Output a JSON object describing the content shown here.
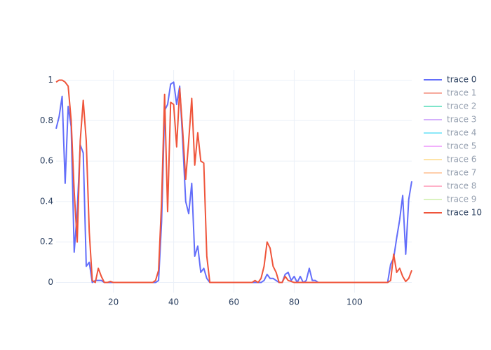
{
  "chart_data": {
    "type": "line",
    "x": [
      1,
      2,
      3,
      4,
      5,
      6,
      7,
      8,
      9,
      10,
      11,
      12,
      13,
      14,
      15,
      16,
      17,
      18,
      19,
      20,
      21,
      22,
      23,
      24,
      25,
      26,
      27,
      28,
      29,
      30,
      31,
      32,
      33,
      34,
      35,
      36,
      37,
      38,
      39,
      40,
      41,
      42,
      43,
      44,
      45,
      46,
      47,
      48,
      49,
      50,
      51,
      52,
      53,
      54,
      55,
      56,
      57,
      58,
      59,
      60,
      61,
      62,
      63,
      64,
      65,
      66,
      67,
      68,
      69,
      70,
      71,
      72,
      73,
      74,
      75,
      76,
      77,
      78,
      79,
      80,
      81,
      82,
      83,
      84,
      85,
      86,
      87,
      88,
      89,
      90,
      91,
      92,
      93,
      94,
      95,
      96,
      97,
      98,
      99,
      100,
      101,
      102,
      103,
      104,
      105,
      106,
      107,
      108,
      109,
      110,
      111,
      112,
      113,
      114,
      115,
      116,
      117,
      118,
      119
    ],
    "series": [
      {
        "name": "trace 0",
        "color": "#636efa",
        "visible": true,
        "values": [
          0.76,
          0.82,
          0.92,
          0.49,
          0.87,
          0.77,
          0.15,
          0.35,
          0.68,
          0.64,
          0.08,
          0.1,
          0,
          0.01,
          0.01,
          0.01,
          0,
          0,
          0,
          0,
          0,
          0,
          0,
          0,
          0,
          0,
          0,
          0,
          0,
          0,
          0,
          0,
          0,
          0,
          0.01,
          0.3,
          0.85,
          0.88,
          0.98,
          0.99,
          0.88,
          0.97,
          0.7,
          0.4,
          0.34,
          0.49,
          0.13,
          0.18,
          0.05,
          0.07,
          0.02,
          0,
          0,
          0,
          0,
          0,
          0,
          0,
          0,
          0,
          0,
          0,
          0,
          0,
          0,
          0,
          0,
          0,
          0,
          0.01,
          0.04,
          0.02,
          0.02,
          0.01,
          0,
          0,
          0.04,
          0.05,
          0.01,
          0.03,
          0,
          0.03,
          0,
          0.01,
          0.07,
          0.01,
          0.01,
          0,
          0,
          0,
          0,
          0,
          0,
          0,
          0,
          0,
          0,
          0,
          0,
          0,
          0,
          0,
          0,
          0,
          0,
          0,
          0,
          0,
          0,
          0,
          0,
          0.09,
          0.12,
          0.22,
          0.31,
          0.43,
          0.14,
          0.41,
          0.5
        ]
      },
      {
        "name": "trace 1",
        "color": "#ef553b",
        "visible": "legendonly"
      },
      {
        "name": "trace 2",
        "color": "#00cc96",
        "visible": "legendonly"
      },
      {
        "name": "trace 3",
        "color": "#ab63fa",
        "visible": "legendonly"
      },
      {
        "name": "trace 4",
        "color": "#19d3f3",
        "visible": "legendonly"
      },
      {
        "name": "trace 5",
        "color": "#e763fa",
        "visible": "legendonly"
      },
      {
        "name": "trace 6",
        "color": "#fecb52",
        "visible": "legendonly"
      },
      {
        "name": "trace 7",
        "color": "#ffa15a",
        "visible": "legendonly"
      },
      {
        "name": "trace 8",
        "color": "#ff6692",
        "visible": "legendonly"
      },
      {
        "name": "trace 9",
        "color": "#b6e880",
        "visible": "legendonly"
      },
      {
        "name": "trace 10",
        "color": "#ef553b",
        "visible": true,
        "values": [
          0.99,
          1,
          1,
          0.99,
          0.97,
          0.8,
          0.45,
          0.2,
          0.7,
          0.9,
          0.7,
          0.25,
          0.01,
          0,
          0.07,
          0.03,
          0,
          0,
          0.005,
          0,
          0,
          0,
          0,
          0,
          0,
          0,
          0,
          0,
          0,
          0,
          0,
          0,
          0,
          0.01,
          0.06,
          0.4,
          0.93,
          0.35,
          0.89,
          0.88,
          0.67,
          0.96,
          0.75,
          0.51,
          0.7,
          0.91,
          0.58,
          0.74,
          0.6,
          0.59,
          0.13,
          0,
          0,
          0,
          0,
          0,
          0,
          0,
          0,
          0,
          0,
          0,
          0,
          0,
          0,
          0,
          0.01,
          0,
          0.02,
          0.08,
          0.2,
          0.17,
          0.08,
          0.05,
          0,
          0,
          0.03,
          0.01,
          0.005,
          0,
          0,
          0,
          0,
          0,
          0,
          0,
          0,
          0,
          0,
          0,
          0,
          0,
          0,
          0,
          0,
          0,
          0,
          0,
          0,
          0,
          0,
          0,
          0,
          0,
          0,
          0,
          0,
          0,
          0,
          0,
          0,
          0.01,
          0.14,
          0.05,
          0.07,
          0.03,
          0.005,
          0.02,
          0.06
        ]
      }
    ],
    "xlim": [
      1,
      119
    ],
    "xticks": [
      20,
      40,
      60,
      80,
      100
    ],
    "ylim": [
      -0.05,
      1.05
    ],
    "yticks": [
      0,
      0.2,
      0.4,
      0.6,
      0.8,
      1
    ],
    "grid": true,
    "legend": "right"
  }
}
